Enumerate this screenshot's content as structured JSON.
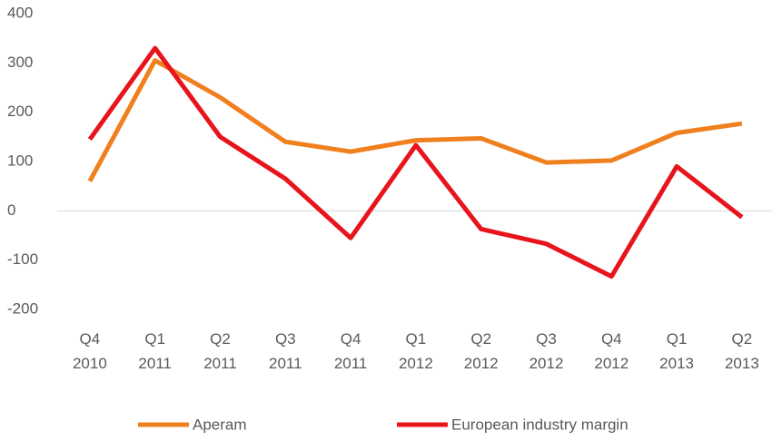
{
  "chart_data": {
    "type": "line",
    "categories": [
      "Q4\n2010",
      "Q1\n2011",
      "Q2\n2011",
      "Q3\n2011",
      "Q4\n2011",
      "Q1\n2012",
      "Q2\n2012",
      "Q3\n2012",
      "Q4\n2012",
      "Q1\n2013",
      "Q2\n2013"
    ],
    "series": [
      {
        "name": "Aperam",
        "color": "#f07f1e",
        "values": [
          60,
          305,
          230,
          140,
          120,
          143,
          147,
          98,
          102,
          158,
          177
        ]
      },
      {
        "name": "European industry margin",
        "color": "#e8141b",
        "values": [
          145,
          330,
          150,
          65,
          -55,
          133,
          -37,
          -67,
          -133,
          90,
          -13
        ]
      }
    ],
    "ylim": [
      -200,
      400
    ],
    "yticks": [
      -200,
      -100,
      0,
      100,
      200,
      300,
      400
    ],
    "grid": false,
    "legend": "bottom"
  }
}
